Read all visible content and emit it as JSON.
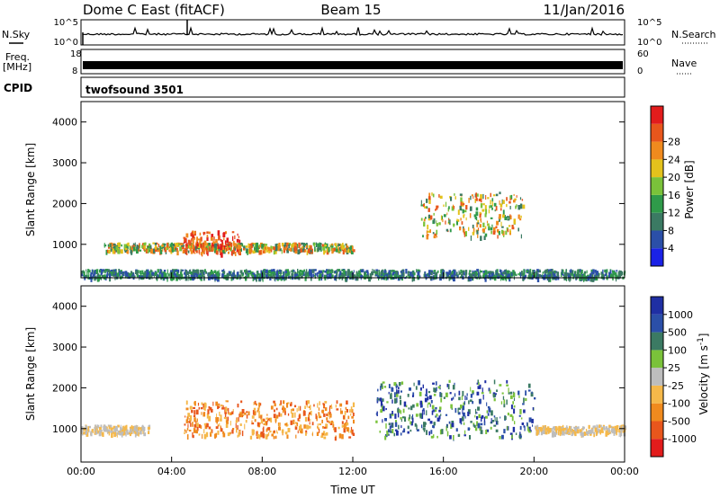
{
  "header": {
    "station": "Dome C East (fitACF)",
    "beam": "Beam 15",
    "date": "11/Jan/2016"
  },
  "panels": {
    "nsky_label": "N.Sky",
    "nsearch_label": "N.Search",
    "nsky_ticks": [
      "10^5",
      "10^0"
    ],
    "nsearch_ticks": [
      "10^5",
      "10^0"
    ],
    "freq_label_1": "Freq.",
    "freq_label_2": "[MHz]",
    "freq_ticks": [
      "18",
      "8"
    ],
    "nave_label": "Nave",
    "nave_ticks": [
      "60",
      "0"
    ],
    "cpid_label": "CPID",
    "cpid_text": "twofsound 3501"
  },
  "colors": {
    "power_scale": [
      "#1a22e6",
      "#2b4fa8",
      "#3b7a63",
      "#2f9a4a",
      "#7ac23a",
      "#e3c21c",
      "#f08a1e",
      "#e8561c",
      "#e21c1c"
    ],
    "velocity_scale": [
      "#e21c1c",
      "#e8561c",
      "#f08a1e",
      "#f5b84a",
      "#bdbdbd",
      "#7ac23a",
      "#3b7a63",
      "#2b4fa8",
      "#1f2fa3"
    ]
  },
  "chart_data": [
    {
      "type": "heatmap",
      "title": "",
      "xlabel": "",
      "ylabel": "Slant Range [km]",
      "xlim": [
        "00:00",
        "00:00"
      ],
      "ylim": [
        180,
        4500
      ],
      "yticks": [
        "1000",
        "2000",
        "3000",
        "4000"
      ],
      "colorbar": {
        "label": "Power [dB]",
        "ticks": [
          "4",
          "8",
          "12",
          "16",
          "20",
          "24",
          "28"
        ]
      },
      "regions": [
        {
          "t_start": "01:00",
          "t_end": "12:00",
          "range_min": 850,
          "range_max": 1050,
          "level": "16-24 dB"
        },
        {
          "t_start": "04:30",
          "t_end": "07:00",
          "range_min": 800,
          "range_max": 1350,
          "level": "28+ dB"
        },
        {
          "t_start": "00:00",
          "t_end": "24:00",
          "range_min": 200,
          "range_max": 400,
          "level": "4-12 dB"
        },
        {
          "t_start": "15:00",
          "t_end": "19:30",
          "range_min": 1200,
          "range_max": 2300,
          "level": "12-28 dB"
        }
      ]
    },
    {
      "type": "heatmap",
      "title": "",
      "xlabel": "Time UT",
      "ylabel": "Slant Range [km]",
      "xlim": [
        "00:00",
        "00:00"
      ],
      "ylim": [
        180,
        4500
      ],
      "yticks": [
        "1000",
        "2000",
        "3000",
        "4000"
      ],
      "xticks": [
        "00:00",
        "04:00",
        "08:00",
        "12:00",
        "16:00",
        "20:00",
        "00:00"
      ],
      "colorbar": {
        "label": "Velocity [m s^-1]",
        "ticks": [
          "1000",
          "500",
          "100",
          "25",
          "-25",
          "-100",
          "-500",
          "-1000"
        ]
      },
      "regions": [
        {
          "t_start": "00:00",
          "t_end": "03:00",
          "range_min": 900,
          "range_max": 1100,
          "level": "-25 to 25 m/s"
        },
        {
          "t_start": "04:30",
          "t_end": "12:00",
          "range_min": 800,
          "range_max": 1700,
          "level": "-100 to -500 m/s"
        },
        {
          "t_start": "13:00",
          "t_end": "20:00",
          "range_min": 800,
          "range_max": 2200,
          "level": "100 to 1000 m/s"
        },
        {
          "t_start": "20:00",
          "t_end": "24:00",
          "range_min": 900,
          "range_max": 1100,
          "level": "-25 to 25 m/s"
        }
      ]
    }
  ]
}
